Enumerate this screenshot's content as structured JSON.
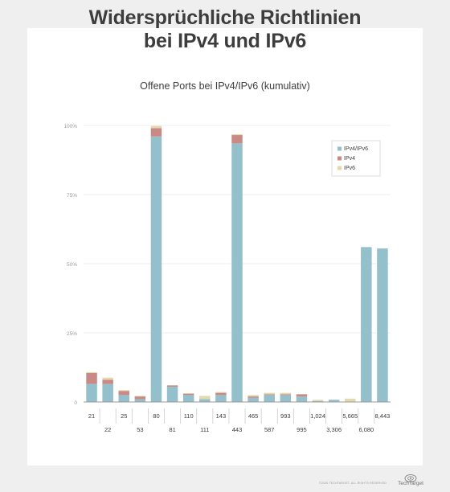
{
  "title_line1": "Widersprüchliche Richtlinien",
  "title_line2": "bei IPv4 und IPv6",
  "subtitle": "Offene Ports bei IPv4/IPv6 (kumulativ)",
  "footer_note": "©2020 TECHTARGET. ALL RIGHTS RESERVED.",
  "brand": "TechTarget",
  "colors": {
    "ipv4_ipv6": "#93c0ca",
    "ipv4": "#c98a86",
    "ipv6": "#e3d9ae",
    "gridline": "#eeeeee",
    "axis": "#999999",
    "text": "#3d3d3d"
  },
  "chart_data": {
    "type": "bar",
    "stacked": true,
    "categories": [
      "21",
      "22",
      "25",
      "53",
      "80",
      "81",
      "110",
      "111",
      "143",
      "443",
      "465",
      "587",
      "993",
      "995",
      "1,024",
      "3,306",
      "5,665",
      "6,080",
      "8,443"
    ],
    "series": [
      {
        "name": "IPv4/IPv6",
        "values": [
          6.5,
          6.5,
          2.5,
          1,
          96,
          5.5,
          2.5,
          1,
          2.5,
          93.5,
          1.5,
          2.5,
          2.5,
          2,
          0.3,
          0.8,
          0,
          56,
          55.5
        ]
      },
      {
        "name": "IPv4",
        "values": [
          4,
          1.5,
          1.5,
          1,
          3,
          0.5,
          0.5,
          0,
          0.8,
          3,
          0.5,
          0.3,
          0.3,
          0.8,
          0,
          0,
          0,
          0,
          0
        ]
      },
      {
        "name": "IPv6",
        "values": [
          0.3,
          0.8,
          0.3,
          0.2,
          0.8,
          0,
          0.2,
          1.2,
          0.3,
          0.3,
          0.5,
          0.5,
          0.5,
          0,
          0.5,
          0,
          1.2,
          0,
          0
        ]
      }
    ],
    "y_ticks": [
      "0",
      "25%",
      "50%",
      "75%",
      "100%"
    ],
    "ylim": [
      0,
      100
    ],
    "grid": true,
    "legend_position": "top-right"
  }
}
